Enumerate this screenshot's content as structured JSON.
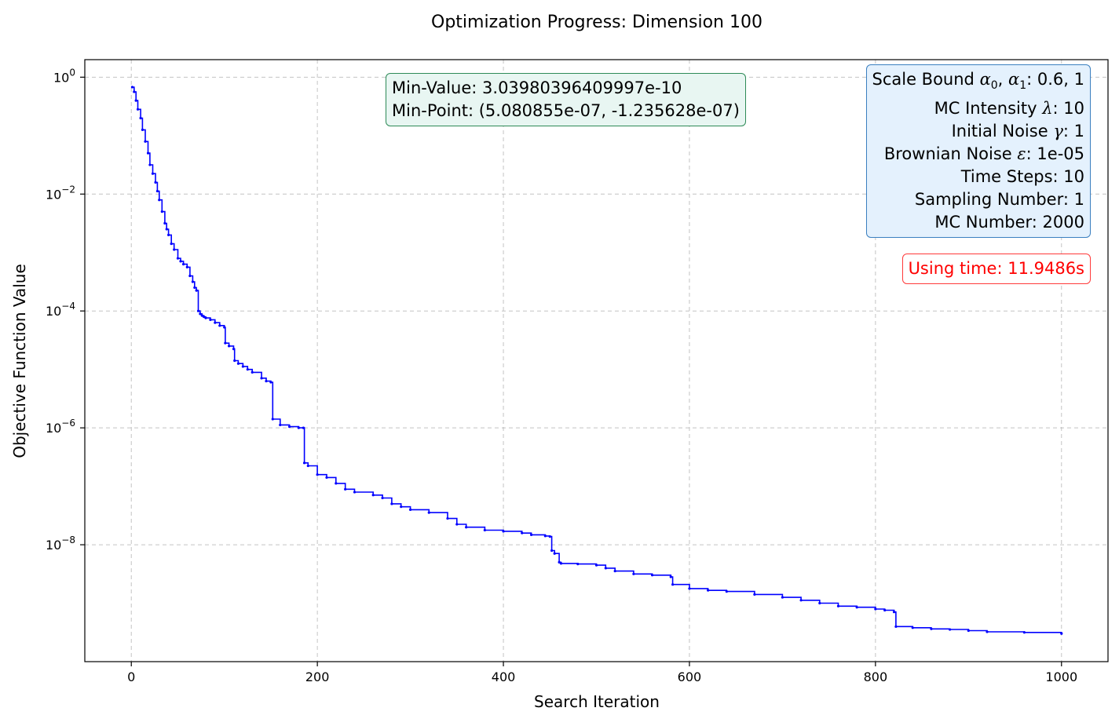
{
  "colors": {
    "line": "#0000ff",
    "min_box_border": "#2e8b57",
    "min_box_bg": "#e8f6f2",
    "param_box_border": "#3a7fc0",
    "param_box_bg": "#e4f1fd",
    "time_text": "#ff0000"
  },
  "chart_data": {
    "type": "line",
    "title": "Optimization Progress: Dimension 100",
    "xlabel": "Search Iteration",
    "ylabel": "Objective Function Value",
    "xscale": "linear",
    "yscale": "log",
    "xlim": [
      -50,
      1050
    ],
    "ylim_log10": [
      -10.0,
      0.3
    ],
    "grid": true,
    "x_ticks": [
      {
        "value": 0,
        "label": "0"
      },
      {
        "value": 200,
        "label": "200"
      },
      {
        "value": 400,
        "label": "400"
      },
      {
        "value": 600,
        "label": "600"
      },
      {
        "value": 800,
        "label": "800"
      },
      {
        "value": 1000,
        "label": "1000"
      }
    ],
    "y_ticks": [
      {
        "exp": 0,
        "base": "10",
        "sup": "0"
      },
      {
        "exp": -2,
        "base": "10",
        "sup": "−2"
      },
      {
        "exp": -4,
        "base": "10",
        "sup": "−4"
      },
      {
        "exp": -6,
        "base": "10",
        "sup": "−6"
      },
      {
        "exp": -8,
        "base": "10",
        "sup": "−8"
      }
    ],
    "series": [
      {
        "name": "objective",
        "x": [
          1,
          3,
          5,
          7,
          10,
          12,
          15,
          18,
          20,
          23,
          26,
          28,
          30,
          33,
          36,
          38,
          40,
          43,
          46,
          50,
          53,
          56,
          60,
          63,
          66,
          68,
          70,
          72,
          74,
          76,
          78,
          80,
          85,
          90,
          95,
          100,
          101,
          105,
          110,
          111,
          115,
          120,
          125,
          130,
          140,
          145,
          150,
          152,
          160,
          170,
          180,
          185,
          186,
          190,
          200,
          210,
          220,
          230,
          240,
          260,
          270,
          280,
          290,
          300,
          320,
          340,
          350,
          360,
          380,
          400,
          420,
          430,
          445,
          450,
          452,
          455,
          460,
          462,
          480,
          500,
          510,
          520,
          540,
          560,
          580,
          582,
          600,
          620,
          640,
          670,
          700,
          720,
          740,
          760,
          780,
          800,
          810,
          820,
          822,
          840,
          860,
          880,
          900,
          920,
          960,
          1000
        ],
        "y_log10": [
          -0.17,
          -0.25,
          -0.4,
          -0.55,
          -0.7,
          -0.9,
          -1.1,
          -1.3,
          -1.5,
          -1.65,
          -1.8,
          -1.95,
          -2.1,
          -2.3,
          -2.5,
          -2.6,
          -2.7,
          -2.85,
          -2.95,
          -3.1,
          -3.15,
          -3.2,
          -3.25,
          -3.4,
          -3.5,
          -3.6,
          -3.65,
          -4.0,
          -4.05,
          -4.08,
          -4.1,
          -4.12,
          -4.15,
          -4.2,
          -4.25,
          -4.28,
          -4.55,
          -4.6,
          -4.65,
          -4.85,
          -4.9,
          -4.95,
          -5.0,
          -5.05,
          -5.15,
          -5.2,
          -5.22,
          -5.85,
          -5.95,
          -5.98,
          -6.0,
          -6.0,
          -6.6,
          -6.65,
          -6.8,
          -6.85,
          -6.95,
          -7.05,
          -7.1,
          -7.15,
          -7.2,
          -7.3,
          -7.35,
          -7.4,
          -7.45,
          -7.55,
          -7.65,
          -7.7,
          -7.75,
          -7.77,
          -7.8,
          -7.83,
          -7.85,
          -7.86,
          -8.1,
          -8.15,
          -8.3,
          -8.32,
          -8.33,
          -8.35,
          -8.4,
          -8.45,
          -8.5,
          -8.52,
          -8.55,
          -8.68,
          -8.75,
          -8.78,
          -8.8,
          -8.85,
          -8.9,
          -8.95,
          -9.0,
          -9.05,
          -9.07,
          -9.1,
          -9.12,
          -9.15,
          -9.4,
          -9.42,
          -9.44,
          -9.45,
          -9.47,
          -9.49,
          -9.5,
          -9.52
        ]
      }
    ]
  },
  "annotations": {
    "min_value": "Min-Value: 3.03980396409997e-10",
    "min_point": "Min-Point: (5.080855e-07, -1.235628e-07)",
    "params": [
      {
        "label": "Scale Bound ",
        "sym": "α",
        "sub": "0",
        "sep": ", ",
        "sym2": "α",
        "sub2": "1",
        "value": ": 0.6, 1"
      },
      {
        "label": "MC Intensity ",
        "sym": "λ",
        "value": ": 10"
      },
      {
        "label": "Initial Noise ",
        "sym": "γ",
        "value": ": 1"
      },
      {
        "label": "Brownian Noise ",
        "sym": "ε",
        "value": ": 1e-05"
      },
      {
        "label": "Time Steps",
        "value": ": 10"
      },
      {
        "label": "Sampling Number",
        "value": ": 1"
      },
      {
        "label": "MC Number",
        "value": ": 2000"
      }
    ],
    "time": "Using time: 11.9486s"
  }
}
